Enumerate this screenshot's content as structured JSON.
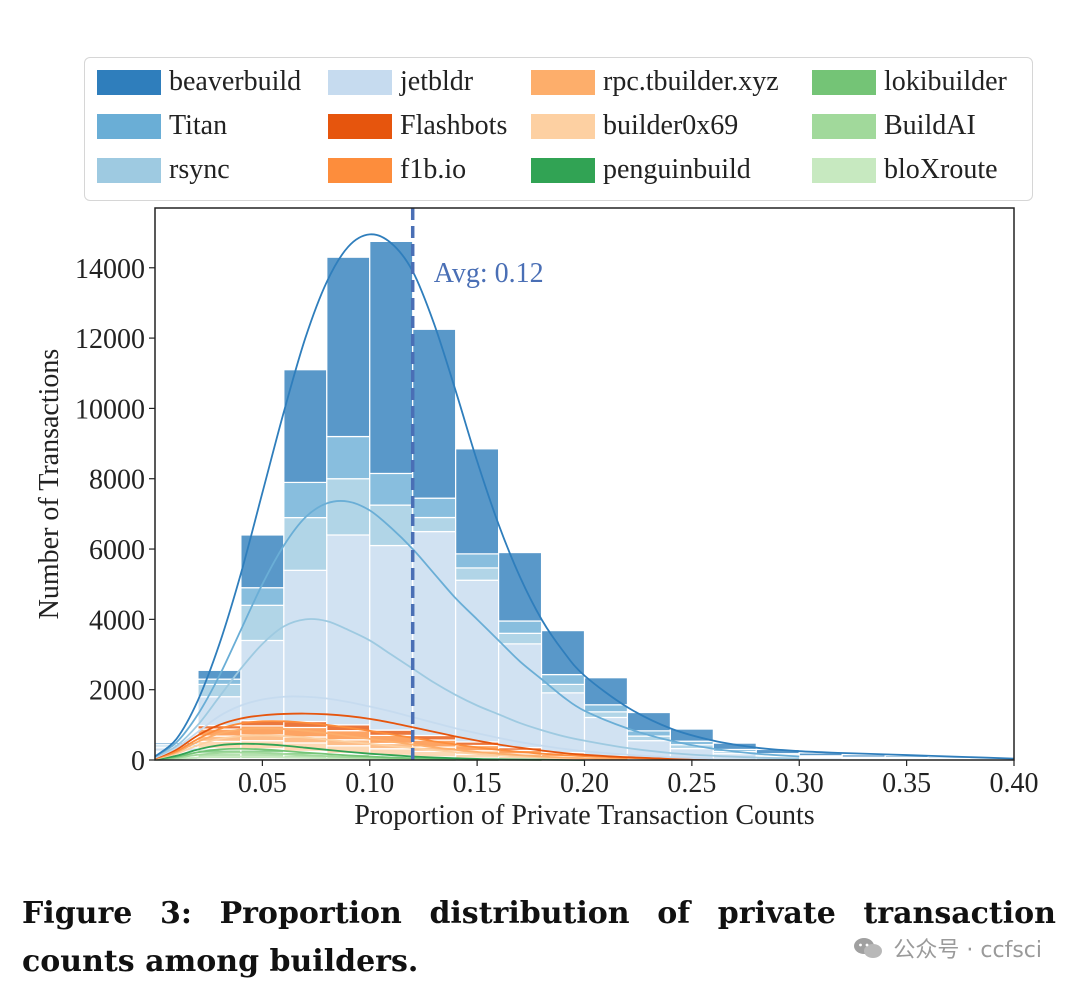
{
  "legend": [
    {
      "name": "beaverbuild",
      "color": "#2f7ebc"
    },
    {
      "name": "Titan",
      "color": "#6aaed6"
    },
    {
      "name": "rsync",
      "color": "#9ecae1"
    },
    {
      "name": "jetbldr",
      "color": "#c6dbef"
    },
    {
      "name": "Flashbots",
      "color": "#e6550d"
    },
    {
      "name": "f1b.io",
      "color": "#fd8d3c"
    },
    {
      "name": "rpc.tbuilder.xyz",
      "color": "#fdae6b"
    },
    {
      "name": "builder0x69",
      "color": "#fdd0a2"
    },
    {
      "name": "penguinbuild",
      "color": "#31a354"
    },
    {
      "name": "lokibuilder",
      "color": "#74c476"
    },
    {
      "name": "BuildAI",
      "color": "#a1d99b"
    },
    {
      "name": "bloXroute",
      "color": "#c7e9c0"
    }
  ],
  "chart_data": {
    "type": "bar",
    "stacked": true,
    "xlabel": "Proportion of Private Transaction Counts",
    "ylabel": "Number of Transactions",
    "xlim": [
      0.0,
      0.4
    ],
    "ylim": [
      0,
      15700
    ],
    "xticks": [
      "0.05",
      "0.10",
      "0.15",
      "0.20",
      "0.25",
      "0.30",
      "0.35",
      "0.40"
    ],
    "yticks": [
      "0",
      "2000",
      "4000",
      "6000",
      "8000",
      "10000",
      "12000",
      "14000"
    ],
    "bin_width": 0.02,
    "x": [
      0.01,
      0.03,
      0.05,
      0.07,
      0.09,
      0.11,
      0.13,
      0.15,
      0.17,
      0.19,
      0.21,
      0.23,
      0.25,
      0.27,
      0.29,
      0.31,
      0.33,
      0.35,
      0.37,
      0.39
    ],
    "totals": [
      500,
      2550,
      6400,
      11100,
      14300,
      14750,
      12250,
      8850,
      5900,
      3680,
      2340,
      1350,
      880,
      480,
      300,
      200,
      150,
      120,
      80,
      40
    ],
    "series": [
      {
        "name": "bloXroute",
        "values": [
          20,
          40,
          40,
          30,
          25,
          20,
          12,
          8,
          5,
          3,
          2,
          0,
          0,
          0,
          0,
          0,
          0,
          0,
          0,
          0
        ]
      },
      {
        "name": "BuildAI",
        "values": [
          40,
          150,
          160,
          120,
          90,
          60,
          40,
          25,
          15,
          10,
          5,
          0,
          0,
          0,
          0,
          0,
          0,
          0,
          0,
          0
        ]
      },
      {
        "name": "lokibuilder",
        "values": [
          30,
          100,
          90,
          70,
          50,
          35,
          25,
          15,
          10,
          5,
          3,
          0,
          0,
          0,
          0,
          0,
          0,
          0,
          0,
          0
        ]
      },
      {
        "name": "penguinbuild",
        "values": [
          10,
          40,
          30,
          25,
          20,
          15,
          10,
          5,
          3,
          2,
          0,
          0,
          0,
          0,
          0,
          0,
          0,
          0,
          0,
          0
        ]
      },
      {
        "name": "builder0x69",
        "values": [
          60,
          200,
          230,
          240,
          220,
          190,
          160,
          110,
          70,
          40,
          20,
          0,
          0,
          0,
          0,
          0,
          0,
          0,
          0,
          0
        ]
      },
      {
        "name": "rpc.tbuilder.xyz",
        "values": [
          30,
          150,
          160,
          170,
          170,
          150,
          120,
          100,
          70,
          40,
          20,
          10,
          0,
          0,
          0,
          0,
          0,
          0,
          0,
          0
        ]
      },
      {
        "name": "f1b.io",
        "values": [
          30,
          200,
          260,
          270,
          260,
          230,
          200,
          150,
          100,
          60,
          30,
          10,
          0,
          0,
          0,
          0,
          0,
          0,
          0,
          0
        ]
      },
      {
        "name": "Flashbots",
        "values": [
          30,
          100,
          150,
          170,
          165,
          150,
          130,
          100,
          80,
          50,
          30,
          15,
          10,
          0,
          0,
          0,
          0,
          0,
          0,
          0
        ]
      },
      {
        "name": "jetbldr",
        "values": [
          100,
          820,
          2280,
          4300,
          5400,
          5250,
          5800,
          4600,
          2950,
          1700,
          1100,
          515,
          315,
          180,
          100,
          60,
          40,
          30,
          20,
          10
        ]
      },
      {
        "name": "rsync",
        "values": [
          50,
          350,
          1000,
          1500,
          1600,
          1150,
          400,
          350,
          300,
          240,
          160,
          130,
          110,
          60,
          40,
          30,
          20,
          20,
          10,
          10
        ]
      },
      {
        "name": "Titan",
        "values": [
          50,
          150,
          500,
          1000,
          1200,
          900,
          550,
          400,
          350,
          280,
          200,
          150,
          100,
          60,
          40,
          30,
          20,
          20,
          10,
          10
        ]
      },
      {
        "name": "beaverbuild",
        "values": [
          50,
          250,
          1500,
          3205,
          5100,
          6600,
          4803,
          2987,
          1947,
          1250,
          770,
          520,
          345,
          180,
          120,
          80,
          70,
          50,
          40,
          10
        ]
      }
    ],
    "kde_lines": [
      {
        "name": "beaverbuild",
        "color": "#2f7ebc",
        "x": [
          0.0,
          0.01,
          0.02,
          0.03,
          0.04,
          0.05,
          0.06,
          0.07,
          0.08,
          0.09,
          0.1,
          0.11,
          0.12,
          0.13,
          0.14,
          0.15,
          0.16,
          0.17,
          0.18,
          0.19,
          0.2,
          0.22,
          0.24,
          0.26,
          0.28,
          0.3,
          0.32,
          0.34,
          0.36,
          0.38,
          0.4
        ],
        "y": [
          100,
          600,
          1700,
          3300,
          5300,
          7600,
          9900,
          12000,
          13600,
          14600,
          14950,
          14700,
          13900,
          12400,
          10500,
          8500,
          6700,
          5200,
          4000,
          3100,
          2400,
          1500,
          900,
          550,
          350,
          250,
          200,
          160,
          120,
          80,
          40
        ]
      },
      {
        "name": "Titan",
        "color": "#6aaed6",
        "x": [
          0.0,
          0.01,
          0.02,
          0.03,
          0.04,
          0.05,
          0.06,
          0.07,
          0.08,
          0.09,
          0.1,
          0.11,
          0.12,
          0.13,
          0.14,
          0.15,
          0.16,
          0.17,
          0.18,
          0.19,
          0.2,
          0.22,
          0.24,
          0.26,
          0.28,
          0.3
        ],
        "y": [
          100,
          500,
          1300,
          2400,
          3700,
          5000,
          6100,
          6900,
          7300,
          7350,
          7100,
          6600,
          6000,
          5300,
          4600,
          4000,
          3400,
          2800,
          2300,
          1800,
          1400,
          900,
          550,
          320,
          180,
          100
        ]
      },
      {
        "name": "rsync",
        "color": "#9ecae1",
        "x": [
          0.0,
          0.01,
          0.02,
          0.03,
          0.04,
          0.05,
          0.06,
          0.07,
          0.08,
          0.09,
          0.1,
          0.11,
          0.12,
          0.13,
          0.14,
          0.15,
          0.16,
          0.17,
          0.18,
          0.19,
          0.2,
          0.22,
          0.24,
          0.26,
          0.28,
          0.3
        ],
        "y": [
          80,
          400,
          1000,
          1800,
          2600,
          3300,
          3800,
          4000,
          3950,
          3700,
          3400,
          3000,
          2600,
          2200,
          1850,
          1550,
          1300,
          1050,
          850,
          680,
          550,
          340,
          200,
          120,
          70,
          40
        ]
      },
      {
        "name": "jetbldr",
        "color": "#c6dbef",
        "x": [
          0.0,
          0.01,
          0.02,
          0.03,
          0.04,
          0.05,
          0.06,
          0.07,
          0.08,
          0.09,
          0.1,
          0.11,
          0.12,
          0.13,
          0.14,
          0.15,
          0.16,
          0.17,
          0.18,
          0.19,
          0.2,
          0.22,
          0.24,
          0.26
        ],
        "y": [
          60,
          350,
          800,
          1250,
          1550,
          1720,
          1800,
          1800,
          1750,
          1650,
          1520,
          1380,
          1220,
          1060,
          900,
          760,
          630,
          510,
          410,
          320,
          250,
          150,
          80,
          40
        ]
      },
      {
        "name": "Flashbots",
        "color": "#e6550d",
        "x": [
          0.0,
          0.01,
          0.02,
          0.03,
          0.04,
          0.05,
          0.06,
          0.07,
          0.08,
          0.09,
          0.1,
          0.11,
          0.12,
          0.13,
          0.14,
          0.15,
          0.16,
          0.17,
          0.18,
          0.19,
          0.2,
          0.22,
          0.24,
          0.26
        ],
        "y": [
          50,
          300,
          700,
          1000,
          1180,
          1270,
          1310,
          1320,
          1300,
          1250,
          1170,
          1060,
          930,
          800,
          670,
          550,
          440,
          350,
          270,
          200,
          150,
          80,
          40,
          20
        ]
      },
      {
        "name": "f1b.io",
        "color": "#fd8d3c",
        "x": [
          0.0,
          0.01,
          0.02,
          0.03,
          0.04,
          0.05,
          0.06,
          0.07,
          0.08,
          0.09,
          0.1,
          0.11,
          0.12,
          0.13,
          0.14,
          0.15,
          0.16,
          0.18,
          0.2,
          0.22,
          0.24
        ],
        "y": [
          40,
          250,
          600,
          880,
          1040,
          1100,
          1100,
          1060,
          1000,
          920,
          830,
          730,
          630,
          530,
          440,
          360,
          290,
          180,
          110,
          60,
          30
        ]
      },
      {
        "name": "rpc.tbuilder.xyz",
        "color": "#fdae6b",
        "x": [
          0.0,
          0.01,
          0.02,
          0.03,
          0.04,
          0.05,
          0.06,
          0.07,
          0.08,
          0.09,
          0.1,
          0.11,
          0.12,
          0.13,
          0.14,
          0.15,
          0.16,
          0.18,
          0.2,
          0.22
        ],
        "y": [
          40,
          220,
          520,
          750,
          870,
          900,
          880,
          830,
          760,
          680,
          600,
          520,
          440,
          360,
          290,
          230,
          180,
          100,
          50,
          20
        ]
      },
      {
        "name": "builder0x69",
        "color": "#fdd0a2",
        "x": [
          0.0,
          0.01,
          0.02,
          0.03,
          0.04,
          0.05,
          0.06,
          0.07,
          0.08,
          0.09,
          0.1,
          0.11,
          0.12,
          0.13,
          0.14,
          0.15,
          0.16,
          0.18,
          0.2
        ],
        "y": [
          30,
          180,
          420,
          600,
          680,
          700,
          680,
          640,
          580,
          520,
          460,
          400,
          340,
          280,
          220,
          170,
          130,
          70,
          30
        ]
      },
      {
        "name": "penguinbuild",
        "color": "#31a354",
        "x": [
          0.0,
          0.01,
          0.02,
          0.03,
          0.04,
          0.05,
          0.06,
          0.07,
          0.08,
          0.09,
          0.1,
          0.11,
          0.12,
          0.13,
          0.14,
          0.15,
          0.16,
          0.18,
          0.2
        ],
        "y": [
          20,
          120,
          300,
          420,
          460,
          450,
          410,
          350,
          290,
          230,
          180,
          140,
          100,
          70,
          50,
          30,
          20,
          10,
          0
        ]
      },
      {
        "name": "lokibuilder",
        "color": "#74c476",
        "x": [
          0.0,
          0.01,
          0.02,
          0.03,
          0.04,
          0.05,
          0.06,
          0.07,
          0.08,
          0.09,
          0.1,
          0.11,
          0.12,
          0.13,
          0.14,
          0.16,
          0.18
        ],
        "y": [
          15,
          90,
          220,
          300,
          320,
          300,
          260,
          210,
          170,
          130,
          100,
          70,
          50,
          30,
          20,
          10,
          0
        ]
      },
      {
        "name": "BuildAI",
        "color": "#a1d99b",
        "x": [
          0.0,
          0.01,
          0.02,
          0.03,
          0.04,
          0.05,
          0.06,
          0.07,
          0.08,
          0.09,
          0.1,
          0.11,
          0.12,
          0.14,
          0.16
        ],
        "y": [
          10,
          60,
          150,
          200,
          210,
          200,
          170,
          140,
          110,
          80,
          60,
          40,
          25,
          10,
          0
        ]
      },
      {
        "name": "bloXroute",
        "color": "#c7e9c0",
        "x": [
          0.0,
          0.01,
          0.02,
          0.03,
          0.04,
          0.05,
          0.06,
          0.07,
          0.08,
          0.09,
          0.1,
          0.12,
          0.14
        ],
        "y": [
          5,
          30,
          70,
          90,
          95,
          90,
          75,
          60,
          45,
          30,
          20,
          10,
          0
        ]
      }
    ],
    "annotations": [
      {
        "text": "Avg: 0.12",
        "x": 0.12,
        "color": "#4a6fb5"
      }
    ]
  },
  "caption": "Figure 3: Proportion distribution of private transaction counts among builders.",
  "watermark": "公众号 · ccfsci"
}
